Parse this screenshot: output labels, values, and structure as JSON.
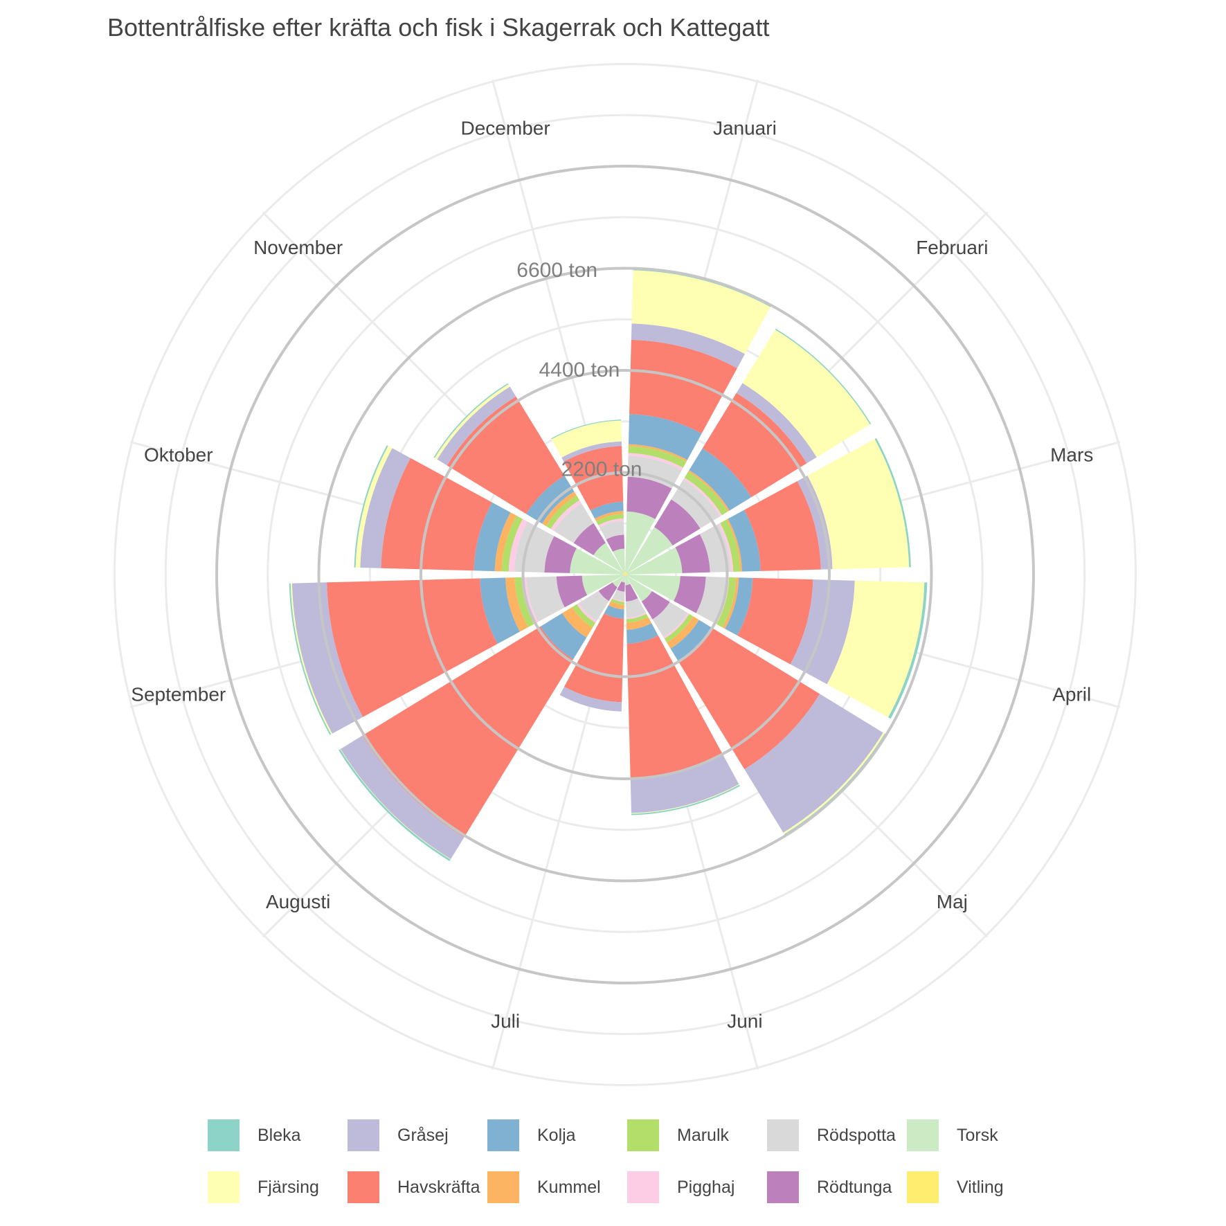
{
  "chart_data": {
    "type": "polar-stacked-bar",
    "title": "Bottentrålfiske efter kräfta och fisk i Skagerrak och Kattegatt",
    "unit": "ton",
    "ring_labels": [
      "2200 ton",
      "4400 ton",
      "6600 ton"
    ],
    "ring_values": [
      2200,
      4400,
      6600
    ],
    "max_value": 8800,
    "categories": [
      "Januari",
      "Februari",
      "Mars",
      "April",
      "Maj",
      "Juni",
      "Juli",
      "Augusti",
      "September",
      "Oktober",
      "November",
      "December"
    ],
    "stack_order": [
      "Vitling",
      "Torsk",
      "Rödtunga",
      "Rödspotta",
      "Pigghaj",
      "Marulk",
      "Kummel",
      "Kolja",
      "Havskräfta",
      "Gråsej",
      "Fjärsing",
      "Bleka"
    ],
    "series": [
      {
        "name": "Vitling",
        "color": "#ffed6f",
        "values": [
          60,
          50,
          50,
          40,
          30,
          30,
          20,
          20,
          30,
          40,
          50,
          60
        ]
      },
      {
        "name": "Torsk",
        "color": "#ccebc5",
        "values": [
          1300,
          1150,
          1180,
          1150,
          650,
          200,
          150,
          300,
          900,
          1150,
          750,
          500
        ]
      },
      {
        "name": "Rödtunga",
        "color": "#bc80bd",
        "values": [
          750,
          700,
          600,
          550,
          450,
          350,
          200,
          350,
          550,
          550,
          500,
          300
        ]
      },
      {
        "name": "Rödspotta",
        "color": "#d9d9d9",
        "values": [
          450,
          500,
          450,
          450,
          450,
          350,
          200,
          500,
          650,
          650,
          500,
          300
        ]
      },
      {
        "name": "Pigghaj",
        "color": "#fccde5",
        "values": [
          60,
          50,
          50,
          50,
          40,
          30,
          20,
          50,
          100,
          120,
          80,
          50
        ]
      },
      {
        "name": "Marulk",
        "color": "#b3de69",
        "values": [
          150,
          150,
          150,
          150,
          100,
          80,
          60,
          120,
          150,
          150,
          120,
          100
        ]
      },
      {
        "name": "Kummel",
        "color": "#fdb462",
        "values": [
          40,
          40,
          40,
          60,
          150,
          150,
          100,
          250,
          200,
          150,
          100,
          60
        ]
      },
      {
        "name": "Kolja",
        "color": "#80b1d3",
        "values": [
          650,
          550,
          400,
          300,
          350,
          300,
          200,
          550,
          550,
          450,
          400,
          200
        ]
      },
      {
        "name": "Havskräfta",
        "color": "#fb8072",
        "values": [
          1600,
          1400,
          1300,
          1300,
          2700,
          2900,
          1800,
          4500,
          3300,
          2000,
          2000,
          1200
        ]
      },
      {
        "name": "Gråsej",
        "color": "#bebada",
        "values": [
          350,
          250,
          250,
          900,
          1600,
          750,
          200,
          550,
          750,
          450,
          250,
          100
        ]
      },
      {
        "name": "Fjärsing",
        "color": "#ffffb3",
        "values": [
          1150,
          1350,
          1650,
          1500,
          40,
          15,
          0,
          10,
          30,
          100,
          60,
          450
        ]
      },
      {
        "name": "Bleka",
        "color": "#8dd3c7",
        "values": [
          25,
          25,
          40,
          60,
          60,
          30,
          0,
          40,
          30,
          30,
          25,
          20
        ]
      }
    ]
  },
  "legend": {
    "items": [
      {
        "name": "Bleka",
        "color": "#8dd3c7"
      },
      {
        "name": "Fjärsing",
        "color": "#ffffb3"
      },
      {
        "name": "Gråsej",
        "color": "#bebada"
      },
      {
        "name": "Havskräfta",
        "color": "#fb8072"
      },
      {
        "name": "Kolja",
        "color": "#80b1d3"
      },
      {
        "name": "Kummel",
        "color": "#fdb462"
      },
      {
        "name": "Marulk",
        "color": "#b3de69"
      },
      {
        "name": "Pigghaj",
        "color": "#fccde5"
      },
      {
        "name": "Rödspotta",
        "color": "#d9d9d9"
      },
      {
        "name": "Rödtunga",
        "color": "#bc80bd"
      },
      {
        "name": "Torsk",
        "color": "#ccebc5"
      },
      {
        "name": "Vitling",
        "color": "#ffed6f"
      }
    ]
  }
}
